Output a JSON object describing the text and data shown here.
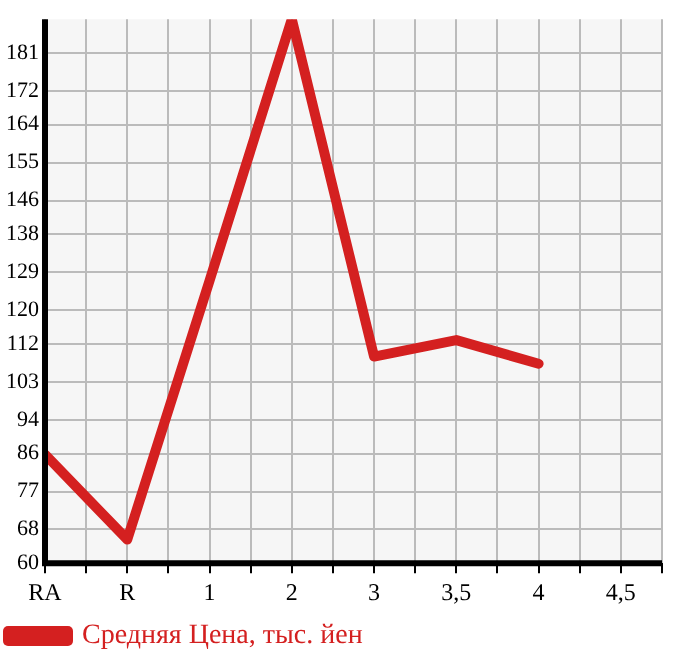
{
  "chart_data": {
    "type": "line",
    "categories": [
      "RA",
      "R",
      "1",
      "2",
      "3",
      "3,5",
      "4",
      "4,5"
    ],
    "series": [
      {
        "name": "Средняя Цена, тыс. йен",
        "color": "#d42020",
        "values": [
          85.8,
          65.6,
          127,
          189,
          109,
          112.9,
          107.3,
          null
        ]
      }
    ],
    "ylim": [
      60,
      189
    ],
    "yticks": [
      60,
      68,
      77,
      86,
      94,
      103,
      112,
      120,
      129,
      138,
      146,
      155,
      164,
      172,
      181
    ],
    "grid": true,
    "legend": "bottom left",
    "marker": "none",
    "line_style": "solid"
  }
}
